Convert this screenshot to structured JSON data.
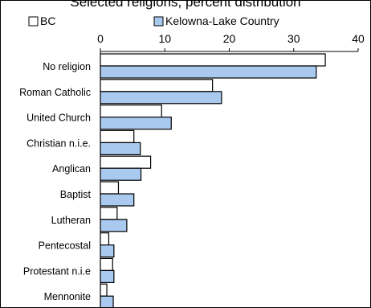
{
  "chart_data": {
    "type": "bar",
    "orientation": "horizontal",
    "title": "Selected religions, percent distribution",
    "categories": [
      "No religion",
      "Roman Catholic",
      "United Church",
      "Christian n.i.e.",
      "Anglican",
      "Baptist",
      "Lutheran",
      "Pentecostal",
      "Protestant n.i.e",
      "Mennonite"
    ],
    "series": [
      {
        "name": "BC",
        "color": "#ffffff",
        "values": [
          34.9,
          17.4,
          9.5,
          5.2,
          7.8,
          2.8,
          2.6,
          1.3,
          1.9,
          1.0
        ]
      },
      {
        "name": "Kelowna-Lake Country",
        "color": "#a9c9ee",
        "values": [
          33.5,
          18.8,
          11.0,
          6.2,
          6.3,
          5.2,
          4.1,
          2.1,
          2.1,
          2.0
        ]
      }
    ],
    "xlim": [
      0,
      40
    ],
    "xticks": [
      0,
      10,
      20,
      30,
      40
    ],
    "xaxis_position": "top",
    "legend_position": "top",
    "grid": false
  }
}
